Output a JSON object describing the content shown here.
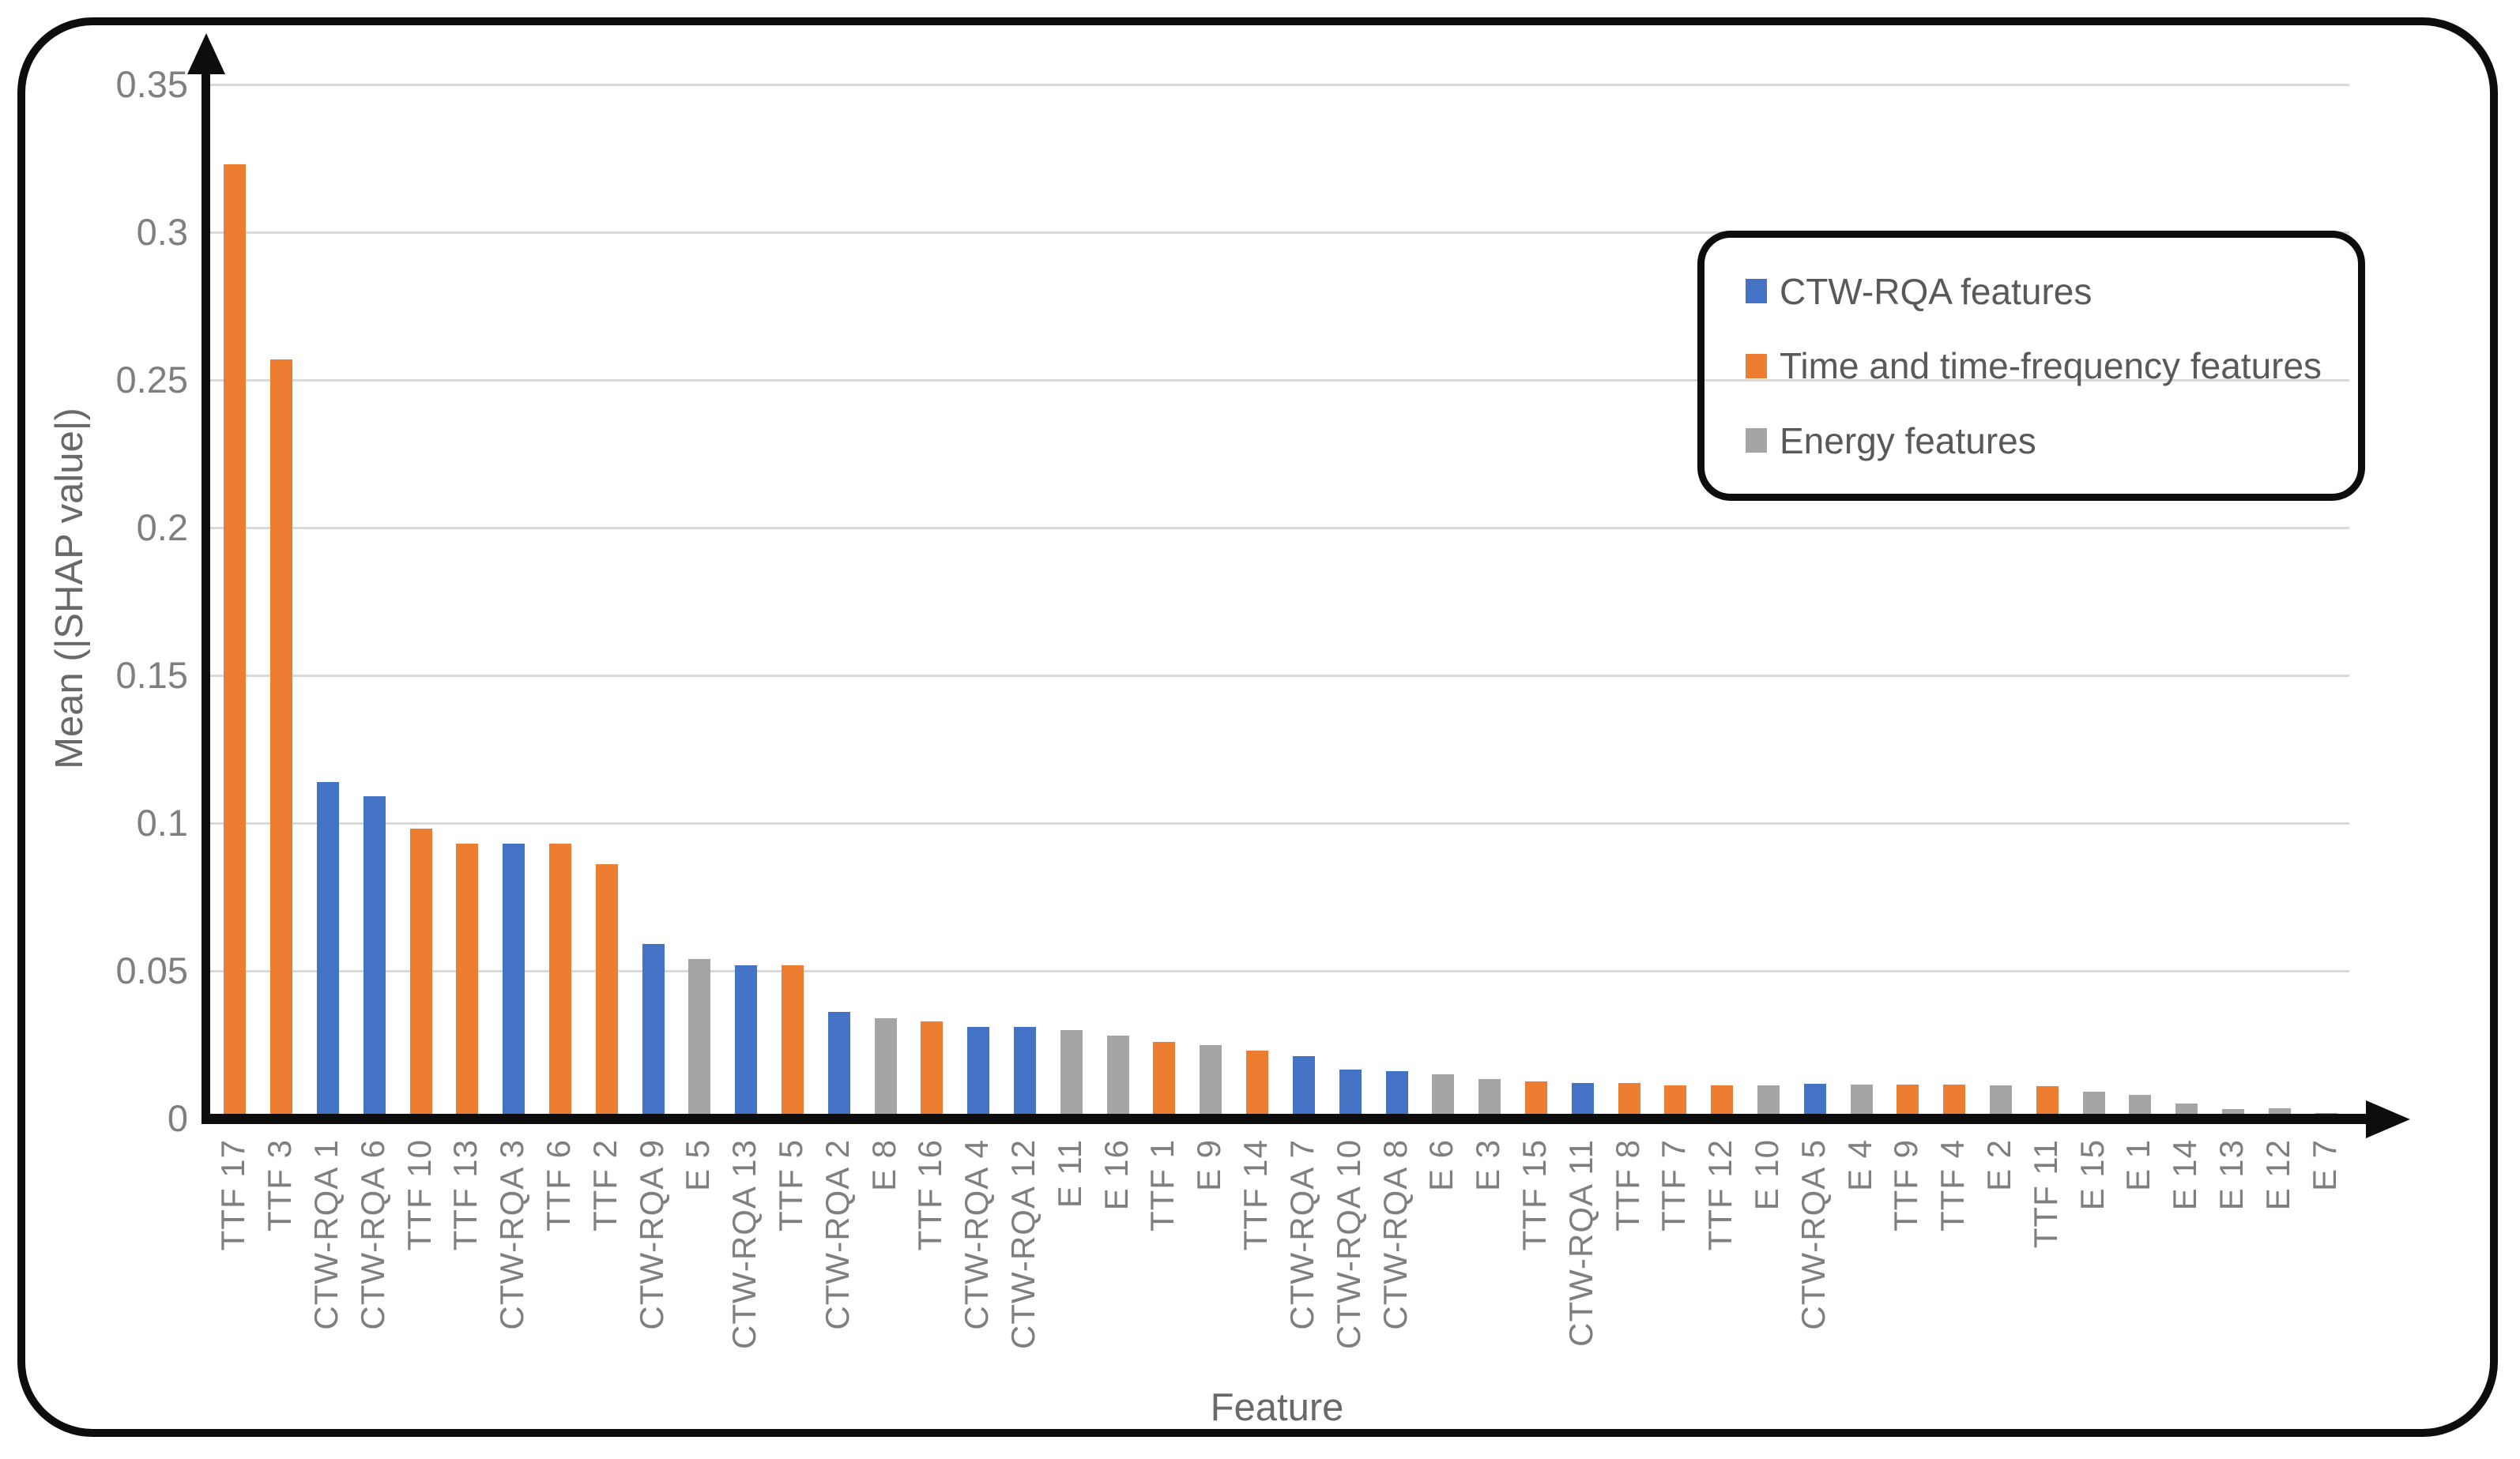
{
  "figure": {
    "background_color": "#ffffff",
    "frame_color": "#0d0d0d",
    "gridline_color": "#d9d9d9",
    "tick_label_color": "#7f7f7f",
    "axis_title_color": "#696969"
  },
  "chart_data": {
    "type": "bar",
    "title": "",
    "xlabel": "Feature",
    "ylabel": "Mean (|SHAP value|)",
    "ylim": [
      0,
      0.35
    ],
    "ytick_step": 0.05,
    "yticks": [
      {
        "value": 0.35,
        "label": "0.35"
      },
      {
        "value": 0.3,
        "label": "0.3"
      },
      {
        "value": 0.25,
        "label": "0.25"
      },
      {
        "value": 0.2,
        "label": "0.2"
      },
      {
        "value": 0.15,
        "label": "0.15"
      },
      {
        "value": 0.1,
        "label": "0.1"
      },
      {
        "value": 0.05,
        "label": "0.05"
      },
      {
        "value": 0,
        "label": "0"
      }
    ],
    "grid": true,
    "legend_position": "upper right",
    "legend_order": [
      "ctw",
      "ttf",
      "energy"
    ],
    "groups": {
      "ctw": {
        "label": "CTW-RQA features",
        "color": "#4472C4"
      },
      "ttf": {
        "label": "Time and time-frequency features",
        "color": "#ED7D31"
      },
      "energy": {
        "label": "Energy features",
        "color": "#A5A5A5"
      }
    },
    "bars": [
      {
        "label": "TTF 17",
        "group": "ttf",
        "value": 0.323
      },
      {
        "label": "TTF 3",
        "group": "ttf",
        "value": 0.257
      },
      {
        "label": "CTW-RQA 1",
        "group": "ctw",
        "value": 0.114
      },
      {
        "label": "CTW-RQA 6",
        "group": "ctw",
        "value": 0.109
      },
      {
        "label": "TTF 10",
        "group": "ttf",
        "value": 0.098
      },
      {
        "label": "TTF 13",
        "group": "ttf",
        "value": 0.093
      },
      {
        "label": "CTW-RQA 3",
        "group": "ctw",
        "value": 0.093
      },
      {
        "label": "TTF 6",
        "group": "ttf",
        "value": 0.093
      },
      {
        "label": "TTF 2",
        "group": "ttf",
        "value": 0.086
      },
      {
        "label": "CTW-RQA 9",
        "group": "ctw",
        "value": 0.059
      },
      {
        "label": "E 5",
        "group": "energy",
        "value": 0.054
      },
      {
        "label": "CTW-RQA 13",
        "group": "ctw",
        "value": 0.052
      },
      {
        "label": "TTF 5",
        "group": "ttf",
        "value": 0.052
      },
      {
        "label": "CTW-RQA 2",
        "group": "ctw",
        "value": 0.036
      },
      {
        "label": "E 8",
        "group": "energy",
        "value": 0.034
      },
      {
        "label": "TTF 16",
        "group": "ttf",
        "value": 0.033
      },
      {
        "label": "CTW-RQA 4",
        "group": "ctw",
        "value": 0.031
      },
      {
        "label": "CTW-RQA 12",
        "group": "ctw",
        "value": 0.031
      },
      {
        "label": "E 11",
        "group": "energy",
        "value": 0.03
      },
      {
        "label": "E 16",
        "group": "energy",
        "value": 0.028
      },
      {
        "label": "TTF 1",
        "group": "ttf",
        "value": 0.026
      },
      {
        "label": "E 9",
        "group": "energy",
        "value": 0.025
      },
      {
        "label": "TTF 14",
        "group": "ttf",
        "value": 0.023
      },
      {
        "label": "CTW-RQA 7",
        "group": "ctw",
        "value": 0.021
      },
      {
        "label": "CTW-RQA 10",
        "group": "ctw",
        "value": 0.0165
      },
      {
        "label": "CTW-RQA 8",
        "group": "ctw",
        "value": 0.016
      },
      {
        "label": "E 6",
        "group": "energy",
        "value": 0.015
      },
      {
        "label": "E 3",
        "group": "energy",
        "value": 0.0135
      },
      {
        "label": "TTF 15",
        "group": "ttf",
        "value": 0.0127
      },
      {
        "label": "CTW-RQA 11",
        "group": "ctw",
        "value": 0.012
      },
      {
        "label": "TTF 8",
        "group": "ttf",
        "value": 0.012
      },
      {
        "label": "TTF 7",
        "group": "ttf",
        "value": 0.0113
      },
      {
        "label": "TTF 12",
        "group": "ttf",
        "value": 0.0113
      },
      {
        "label": "E 10",
        "group": "energy",
        "value": 0.0112
      },
      {
        "label": "CTW-RQA 5",
        "group": "ctw",
        "value": 0.0118
      },
      {
        "label": "E 4",
        "group": "energy",
        "value": 0.0115
      },
      {
        "label": "TTF 9",
        "group": "ttf",
        "value": 0.0115
      },
      {
        "label": "TTF 4",
        "group": "ttf",
        "value": 0.0115
      },
      {
        "label": "E 2",
        "group": "energy",
        "value": 0.0113
      },
      {
        "label": "TTF 11",
        "group": "ttf",
        "value": 0.011
      },
      {
        "label": "E 15",
        "group": "energy",
        "value": 0.009
      },
      {
        "label": "E 1",
        "group": "energy",
        "value": 0.008
      },
      {
        "label": "E 14",
        "group": "energy",
        "value": 0.005
      },
      {
        "label": "E 13",
        "group": "energy",
        "value": 0.0032
      },
      {
        "label": "E 12",
        "group": "energy",
        "value": 0.0035
      },
      {
        "label": "E 7",
        "group": "energy",
        "value": 0.002
      }
    ]
  }
}
